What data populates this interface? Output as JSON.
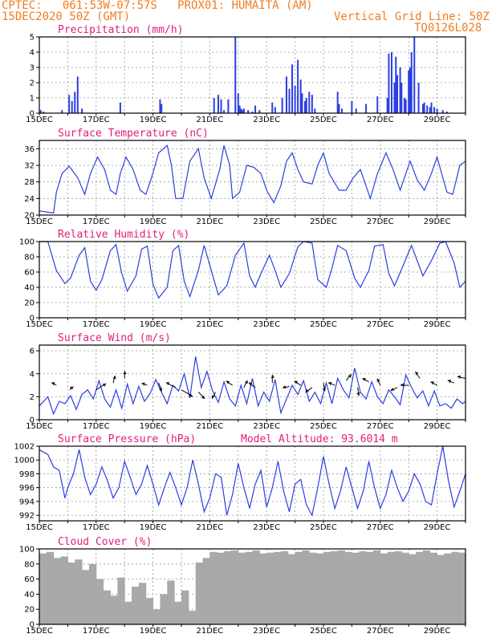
{
  "header": {
    "line1": "CPTEC:   061:53W-07:57S   PROX01: HUMAITA (AM)",
    "line2_left": "15DEC2020 50Z (GMT)",
    "line2_right": "Vertical Grid Line: 50Z",
    "line3_right": "TQ0126L028"
  },
  "colors": {
    "header": "#f07d20",
    "title": "#e0207a",
    "series": "#2b3fe0",
    "cloud": "#a9a9a9"
  },
  "chart_data": [
    {
      "id": "precip",
      "type": "bar",
      "title": "Precipitation (mm/h)",
      "ylim": [
        0,
        5
      ],
      "yticks": [
        "0",
        "1",
        "2",
        "3",
        "4",
        "5"
      ],
      "xticks": [
        "15DEC",
        "17DEC",
        "19DEC",
        "21DEC",
        "23DEC",
        "25DEC",
        "27DEC",
        "29DEC"
      ],
      "xlim": [
        0,
        15
      ],
      "x": [
        0.05,
        0.15,
        0.8,
        1.05,
        1.15,
        1.25,
        1.35,
        1.5,
        2.85,
        4.25,
        4.3,
        6.15,
        6.3,
        6.4,
        6.5,
        6.65,
        6.9,
        7.0,
        7.05,
        7.1,
        7.15,
        7.2,
        7.35,
        7.5,
        7.6,
        7.75,
        8.2,
        8.3,
        8.55,
        8.7,
        8.8,
        8.9,
        9.0,
        9.1,
        9.2,
        9.25,
        9.35,
        9.4,
        9.5,
        9.6,
        9.7,
        10.5,
        10.55,
        10.65,
        11.0,
        11.15,
        11.5,
        11.9,
        12.25,
        12.3,
        12.4,
        12.5,
        12.55,
        12.6,
        12.7,
        12.75,
        12.85,
        12.9,
        13.0,
        13.05,
        13.1,
        13.2,
        13.35,
        13.5,
        13.55,
        13.65,
        13.75,
        13.8,
        13.9,
        14.0,
        14.2,
        14.35
      ],
      "values": [
        0.2,
        0.1,
        0.2,
        1.2,
        0.8,
        1.4,
        2.4,
        0.3,
        0.7,
        0.9,
        0.6,
        1.0,
        1.2,
        0.9,
        0.2,
        0.9,
        5.0,
        1.3,
        0.5,
        0.3,
        0.2,
        0.3,
        0.2,
        0.1,
        0.5,
        0.2,
        0.7,
        0.4,
        1.0,
        2.4,
        1.6,
        3.2,
        1.8,
        3.5,
        2.2,
        1.3,
        0.8,
        1.0,
        1.4,
        1.2,
        0.3,
        1.4,
        0.6,
        0.3,
        0.8,
        0.3,
        0.6,
        1.1,
        1.0,
        3.9,
        4.0,
        2.0,
        3.7,
        2.5,
        3.0,
        2.0,
        1.0,
        0.9,
        2.8,
        3.0,
        4.0,
        5.0,
        2.0,
        0.6,
        0.7,
        0.5,
        0.4,
        0.7,
        0.4,
        0.3,
        0.2,
        0.1
      ]
    },
    {
      "id": "temp",
      "type": "line",
      "title": "Surface Temperature (nC)",
      "ylim": [
        20,
        38
      ],
      "yticks": [
        "20",
        "24",
        "28",
        "32",
        "36"
      ],
      "xticks": [
        "15DEC",
        "17DEC",
        "19DEC",
        "21DEC",
        "23DEC",
        "25DEC",
        "27DEC",
        "29DEC"
      ],
      "x": [
        0,
        0.5,
        0.6,
        0.8,
        1.05,
        1.35,
        1.6,
        1.8,
        2.05,
        2.3,
        2.5,
        2.7,
        2.85,
        3.05,
        3.3,
        3.55,
        3.75,
        3.95,
        4.2,
        4.5,
        4.65,
        4.8,
        5.05,
        5.3,
        5.6,
        5.8,
        6.05,
        6.35,
        6.5,
        6.7,
        6.8,
        7.05,
        7.3,
        7.55,
        7.8,
        8.0,
        8.25,
        8.5,
        8.7,
        8.9,
        9.1,
        9.3,
        9.6,
        9.8,
        10.0,
        10.2,
        10.55,
        10.8,
        11.05,
        11.3,
        11.5,
        11.65,
        11.9,
        12.2,
        12.45,
        12.7,
        12.9,
        13.05,
        13.3,
        13.55,
        13.8,
        14.0,
        14.2,
        14.35,
        14.55,
        14.8,
        15.0
      ],
      "y": [
        21,
        20.5,
        25.5,
        30,
        31.8,
        29,
        25,
        30,
        34,
        31,
        26,
        25,
        30,
        34,
        31,
        26,
        25,
        29,
        35,
        36.8,
        32,
        24,
        24,
        33,
        36,
        29,
        24,
        31,
        36.8,
        32,
        24,
        25.5,
        32,
        31.5,
        30,
        26,
        23,
        27,
        33,
        35,
        31,
        28,
        27.5,
        32,
        35,
        30,
        26,
        26,
        29,
        31,
        27,
        24,
        30,
        35,
        31,
        26,
        30,
        33,
        28.5,
        26,
        30,
        34,
        29,
        25.5,
        25,
        32,
        33
      ]
    },
    {
      "id": "rh",
      "type": "line",
      "title": "Relative Humidity (%)",
      "ylim": [
        0,
        100
      ],
      "yticks": [
        "0",
        "20",
        "40",
        "60",
        "80",
        "100"
      ],
      "xticks": [
        "15DEC",
        "17DEC",
        "19DEC",
        "21DEC",
        "23DEC",
        "25DEC",
        "27DEC",
        "29DEC"
      ],
      "x": [
        0,
        0.3,
        0.6,
        0.9,
        1.1,
        1.4,
        1.6,
        1.8,
        2.0,
        2.2,
        2.5,
        2.7,
        2.9,
        3.1,
        3.4,
        3.6,
        3.8,
        4.0,
        4.2,
        4.5,
        4.7,
        4.9,
        5.1,
        5.3,
        5.6,
        5.8,
        6.1,
        6.3,
        6.6,
        6.9,
        7.2,
        7.4,
        7.6,
        7.8,
        8.1,
        8.3,
        8.5,
        8.8,
        9.1,
        9.3,
        9.6,
        9.8,
        10.1,
        10.3,
        10.5,
        10.8,
        11.1,
        11.3,
        11.6,
        11.8,
        12.1,
        12.3,
        12.5,
        12.8,
        13.1,
        13.3,
        13.5,
        13.8,
        14.1,
        14.3,
        14.6,
        14.8,
        15.0
      ],
      "y": [
        100,
        100,
        62,
        45,
        52,
        82,
        92,
        48,
        36,
        50,
        88,
        96,
        58,
        35,
        55,
        90,
        94,
        44,
        26,
        40,
        88,
        95,
        48,
        28,
        62,
        95,
        56,
        30,
        42,
        82,
        98,
        55,
        40,
        58,
        82,
        62,
        40,
        58,
        93,
        100,
        98,
        50,
        40,
        65,
        95,
        88,
        52,
        40,
        62,
        94,
        96,
        58,
        42,
        68,
        95,
        75,
        55,
        75,
        98,
        100,
        72,
        40,
        48
      ]
    },
    {
      "id": "wind",
      "type": "line",
      "title": "Surface Wind (m/s)",
      "ylim": [
        0,
        6.5
      ],
      "yticks": [
        "0",
        "2",
        "4",
        "6"
      ],
      "xticks": [
        "15DEC",
        "17DEC",
        "19DEC",
        "21DEC",
        "23DEC",
        "25DEC",
        "27DEC",
        "29DEC"
      ],
      "x": [
        0,
        0.3,
        0.5,
        0.7,
        0.9,
        1.1,
        1.3,
        1.5,
        1.7,
        1.9,
        2.1,
        2.3,
        2.5,
        2.7,
        2.9,
        3.1,
        3.3,
        3.5,
        3.7,
        3.9,
        4.1,
        4.3,
        4.5,
        4.7,
        4.9,
        5.1,
        5.3,
        5.5,
        5.7,
        5.9,
        6.1,
        6.3,
        6.5,
        6.7,
        6.9,
        7.1,
        7.3,
        7.5,
        7.7,
        7.9,
        8.1,
        8.3,
        8.5,
        8.7,
        8.9,
        9.1,
        9.3,
        9.5,
        9.7,
        9.9,
        10.1,
        10.3,
        10.5,
        10.7,
        10.9,
        11.1,
        11.3,
        11.5,
        11.7,
        11.9,
        12.1,
        12.3,
        12.5,
        12.7,
        12.9,
        13.1,
        13.3,
        13.5,
        13.7,
        13.9,
        14.1,
        14.3,
        14.5,
        14.7,
        14.9,
        15.0
      ],
      "y": [
        1.2,
        2.0,
        0.5,
        1.6,
        1.4,
        2.1,
        0.9,
        2.2,
        2.6,
        1.8,
        3.4,
        1.8,
        1.1,
        2.6,
        1.0,
        3.1,
        1.4,
        2.9,
        1.6,
        2.3,
        3.5,
        2.4,
        1.4,
        3.0,
        2.5,
        4.0,
        1.9,
        5.5,
        2.8,
        4.2,
        2.5,
        1.5,
        3.3,
        1.8,
        1.2,
        3.0,
        1.4,
        3.6,
        1.2,
        2.4,
        1.6,
        3.5,
        0.6,
        1.8,
        3.0,
        2.2,
        3.4,
        1.6,
        2.4,
        1.4,
        3.2,
        1.4,
        3.6,
        2.6,
        1.9,
        4.5,
        2.4,
        1.8,
        3.3,
        2.0,
        1.4,
        2.6,
        2.0,
        1.3,
        3.9,
        2.8,
        1.9,
        2.5,
        1.2,
        2.5,
        1.2,
        1.4,
        1.0,
        1.8,
        1.4,
        1.6
      ],
      "arrows": [
        {
          "x": 0.6,
          "y": 3.0,
          "dx": -6,
          "dy": -3
        },
        {
          "x": 1.2,
          "y": 2.9,
          "dx": -4,
          "dy": 4
        },
        {
          "x": 2.0,
          "y": 2.6,
          "dx": 12,
          "dy": -8
        },
        {
          "x": 2.6,
          "y": 3.2,
          "dx": 2,
          "dy": -9
        },
        {
          "x": 3.0,
          "y": 3.6,
          "dx": 0,
          "dy": -9
        },
        {
          "x": 3.8,
          "y": 3.0,
          "dx": -7,
          "dy": -2
        },
        {
          "x": 4.2,
          "y": 3.2,
          "dx": 4,
          "dy": 10
        },
        {
          "x": 4.8,
          "y": 2.8,
          "dx": -12,
          "dy": -6
        },
        {
          "x": 5.0,
          "y": 2.6,
          "dx": 14,
          "dy": 8
        },
        {
          "x": 5.6,
          "y": 2.4,
          "dx": 8,
          "dy": 8
        },
        {
          "x": 6.2,
          "y": 2.4,
          "dx": -4,
          "dy": 8
        },
        {
          "x": 6.8,
          "y": 3.0,
          "dx": -8,
          "dy": -5
        },
        {
          "x": 7.2,
          "y": 2.8,
          "dx": 4,
          "dy": -9
        },
        {
          "x": 7.6,
          "y": 2.8,
          "dx": -8,
          "dy": -6
        },
        {
          "x": 8.2,
          "y": 3.2,
          "dx": 0,
          "dy": -10
        },
        {
          "x": 8.8,
          "y": 2.9,
          "dx": -8,
          "dy": 2
        },
        {
          "x": 9.2,
          "y": 3.0,
          "dx": -8,
          "dy": -5
        },
        {
          "x": 9.6,
          "y": 2.8,
          "dx": -8,
          "dy": 6
        },
        {
          "x": 10.0,
          "y": 3.2,
          "dx": 2,
          "dy": 10
        },
        {
          "x": 10.4,
          "y": 3.0,
          "dx": -8,
          "dy": -3
        },
        {
          "x": 10.8,
          "y": 3.4,
          "dx": 6,
          "dy": -8
        },
        {
          "x": 11.2,
          "y": 2.8,
          "dx": 2,
          "dy": 10
        },
        {
          "x": 11.6,
          "y": 3.3,
          "dx": -8,
          "dy": -4
        },
        {
          "x": 12.0,
          "y": 3.0,
          "dx": -4,
          "dy": -8
        },
        {
          "x": 12.6,
          "y": 2.8,
          "dx": -8,
          "dy": 4
        },
        {
          "x": 13.0,
          "y": 3.0,
          "dx": -10,
          "dy": 0
        },
        {
          "x": 13.4,
          "y": 3.6,
          "dx": -6,
          "dy": -8
        },
        {
          "x": 14.0,
          "y": 3.0,
          "dx": -8,
          "dy": -4
        },
        {
          "x": 14.6,
          "y": 3.2,
          "dx": -8,
          "dy": -3
        },
        {
          "x": 15.0,
          "y": 3.6,
          "dx": -10,
          "dy": -2
        }
      ]
    },
    {
      "id": "press",
      "type": "line",
      "title": "Surface Pressure (hPa)",
      "annotation": "Model Altitude: 93.6014 m",
      "ylim": [
        991.2,
        1002
      ],
      "yticks": [
        "992",
        "994",
        "996",
        "998",
        "1000",
        "1002"
      ],
      "xticks": [
        "15DEC",
        "17DEC",
        "19DEC",
        "21DEC",
        "23DEC",
        "25DEC",
        "27DEC",
        "29DEC"
      ],
      "x": [
        0,
        0.3,
        0.5,
        0.7,
        0.9,
        1.0,
        1.2,
        1.4,
        1.6,
        1.8,
        2.0,
        2.2,
        2.4,
        2.6,
        2.8,
        3.0,
        3.2,
        3.4,
        3.6,
        3.8,
        4.0,
        4.2,
        4.4,
        4.6,
        4.8,
        5.0,
        5.2,
        5.4,
        5.6,
        5.8,
        6.0,
        6.2,
        6.4,
        6.6,
        6.8,
        7.0,
        7.2,
        7.4,
        7.6,
        7.8,
        8.0,
        8.2,
        8.4,
        8.6,
        8.8,
        9.0,
        9.2,
        9.4,
        9.6,
        9.8,
        10.0,
        10.2,
        10.4,
        10.6,
        10.8,
        11.0,
        11.2,
        11.4,
        11.6,
        11.8,
        12.0,
        12.2,
        12.4,
        12.6,
        12.8,
        13.0,
        13.2,
        13.4,
        13.6,
        13.8,
        14.0,
        14.2,
        14.4,
        14.6,
        14.8,
        15.0
      ],
      "y": [
        1001.5,
        1000.8,
        999,
        998.5,
        994.5,
        996,
        998,
        1001.5,
        997.5,
        995,
        996.5,
        999,
        997,
        994.5,
        996,
        999.8,
        997.5,
        995,
        996.5,
        999.2,
        996.5,
        993.5,
        996,
        998.2,
        996,
        993.5,
        996,
        1000,
        996.5,
        992.5,
        994.5,
        998,
        997.5,
        992,
        995,
        999.5,
        996,
        993,
        996.5,
        998.5,
        993.2,
        996,
        999.8,
        995.5,
        992.5,
        996.5,
        997.2,
        993.5,
        992,
        996,
        1000.5,
        996.5,
        993,
        995.5,
        999,
        996,
        993,
        995.5,
        999.8,
        996,
        993,
        995,
        998.5,
        996,
        994,
        995.5,
        998,
        996.5,
        994,
        993.5,
        998,
        1002,
        997,
        993.2,
        995.5,
        998
      ]
    },
    {
      "id": "cloud",
      "type": "bar",
      "title": "Cloud Cover (%)",
      "ylim": [
        0,
        100
      ],
      "yticks": [
        "0",
        "20",
        "40",
        "60",
        "80",
        "100"
      ],
      "xticks": [
        "15DEC",
        "17DEC",
        "19DEC",
        "21DEC",
        "23DEC",
        "25DEC",
        "27DEC",
        "29DEC"
      ],
      "x": [
        0,
        0.25,
        0.5,
        0.75,
        1.0,
        1.25,
        1.5,
        1.75,
        2.0,
        2.25,
        2.5,
        2.75,
        3.0,
        3.25,
        3.5,
        3.75,
        4.0,
        4.25,
        4.5,
        4.75,
        5.0,
        5.25,
        5.5,
        5.75,
        6.0,
        6.25,
        6.5,
        6.75,
        7.0,
        7.25,
        7.5,
        7.75,
        8.0,
        8.25,
        8.5,
        8.75,
        9.0,
        9.25,
        9.5,
        9.75,
        10.0,
        10.25,
        10.5,
        10.75,
        11.0,
        11.25,
        11.5,
        11.75,
        12.0,
        12.25,
        12.5,
        12.75,
        13.0,
        13.25,
        13.5,
        13.75,
        14.0,
        14.25,
        14.5,
        14.75
      ],
      "values": [
        94,
        96,
        88,
        90,
        82,
        86,
        72,
        80,
        60,
        45,
        38,
        62,
        30,
        50,
        55,
        35,
        20,
        40,
        58,
        30,
        45,
        18,
        82,
        88,
        96,
        95,
        97,
        98,
        95,
        96,
        98,
        94,
        95,
        96,
        97,
        93,
        96,
        98,
        95,
        94,
        96,
        97,
        98,
        96,
        95,
        97,
        96,
        98,
        94,
        96,
        97,
        95,
        93,
        96,
        98,
        95,
        92,
        94,
        96,
        95
      ]
    }
  ]
}
